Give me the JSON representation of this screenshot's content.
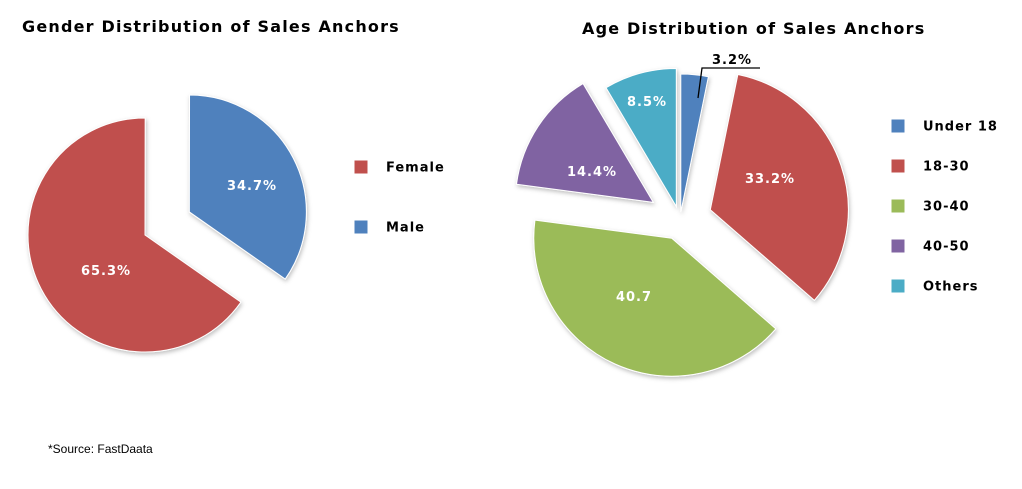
{
  "colors": {
    "blue": "#4f81bd",
    "red": "#c0504d",
    "green": "#9bbb59",
    "purple": "#8064a2",
    "teal": "#4bacc6"
  },
  "source_note": "*Source: FastDaata",
  "chart_data": [
    {
      "type": "pie",
      "title": "Gender Distribution of Sales Anchors",
      "legend_position": "right",
      "slices": [
        {
          "name": "Female",
          "value": 65.3,
          "label": "65.3%",
          "color": "#c0504d"
        },
        {
          "name": "Male",
          "value": 34.7,
          "label": "34.7%",
          "color": "#4f81bd"
        }
      ]
    },
    {
      "type": "pie",
      "title": "Age Distribution of Sales Anchors",
      "legend_position": "right",
      "slices": [
        {
          "name": "Under 18",
          "value": 3.2,
          "label": "3.2%",
          "color": "#4f81bd"
        },
        {
          "name": "18-30",
          "value": 33.2,
          "label": "33.2%",
          "color": "#c0504d"
        },
        {
          "name": "30-40",
          "value": 40.7,
          "label": "40.7",
          "color": "#9bbb59"
        },
        {
          "name": "40-50",
          "value": 14.4,
          "label": "14.4%",
          "color": "#8064a2"
        },
        {
          "name": "Others",
          "value": 8.5,
          "label": "8.5%",
          "color": "#4bacc6"
        }
      ]
    }
  ]
}
